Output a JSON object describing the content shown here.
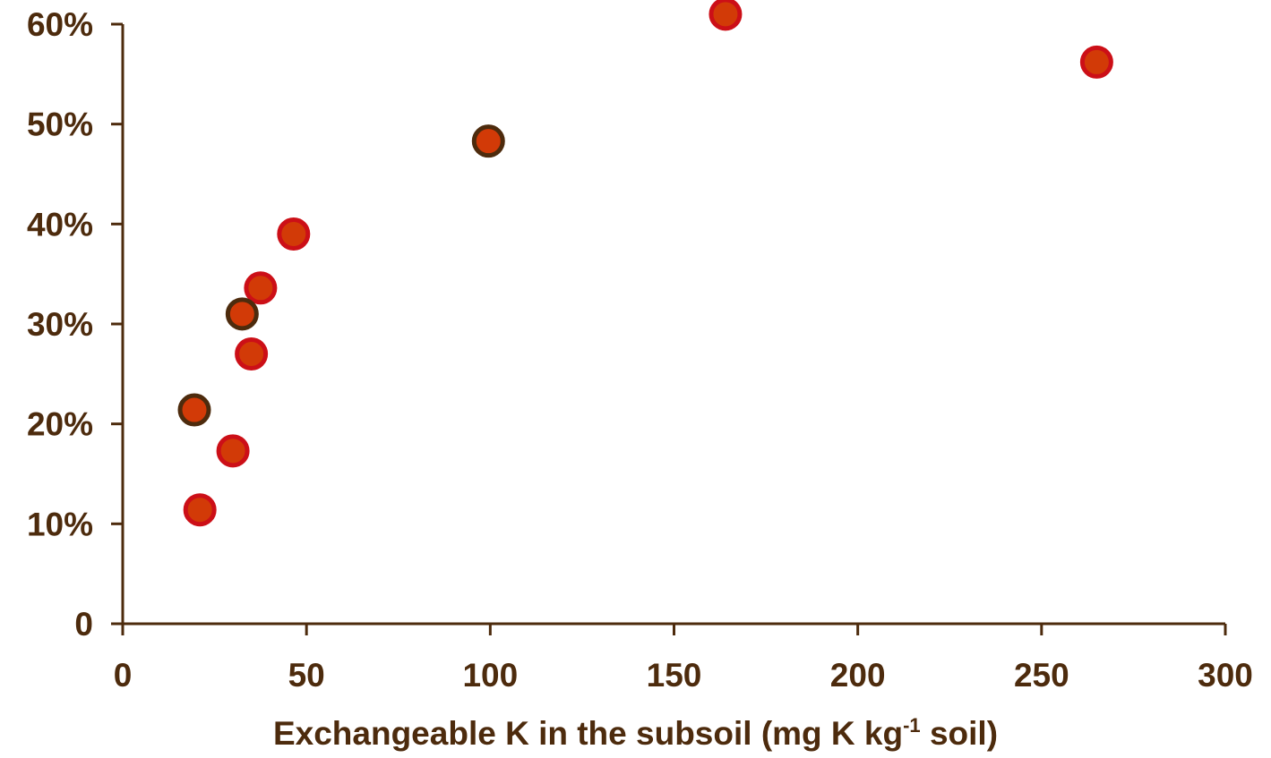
{
  "chart_data": {
    "type": "scatter",
    "title": "",
    "xlabel": {
      "prefix": "Exchangeable K in the subsoil (mg K kg",
      "superscript": "-1",
      "suffix": " soil)"
    },
    "ylabel": "",
    "xlim": [
      0,
      300
    ],
    "ylim": [
      0,
      0.6
    ],
    "x_ticks": [
      0,
      50,
      100,
      150,
      200,
      250,
      300
    ],
    "x_tick_labels": [
      "0",
      "50",
      "100",
      "150",
      "200",
      "250",
      "300"
    ],
    "y_ticks": [
      0,
      0.1,
      0.2,
      0.3,
      0.4,
      0.5,
      0.6
    ],
    "y_tick_labels": [
      "0",
      "10%",
      "20%",
      "30%",
      "40%",
      "50%",
      "60%"
    ],
    "grid": false,
    "legend": "none",
    "series": [
      {
        "values": [
          {
            "x": 21,
            "y": 0.114
          },
          {
            "x": 30,
            "y": 0.173
          },
          {
            "x": 35,
            "y": 0.27
          },
          {
            "x": 37.5,
            "y": 0.336
          },
          {
            "x": 46.5,
            "y": 0.39
          },
          {
            "x": 164,
            "y": 0.61
          },
          {
            "x": 265,
            "y": 0.562
          }
        ],
        "fill": "#d23a07",
        "outline": "#cc0f17"
      },
      {
        "values": [
          {
            "x": 19.5,
            "y": 0.214
          },
          {
            "x": 32.5,
            "y": 0.31
          },
          {
            "x": 99.5,
            "y": 0.483
          }
        ],
        "fill": "#d23a07",
        "outline": "#4d2b0d"
      }
    ],
    "colors": {
      "axis": "#4d2b0d",
      "text": "#4d2b0d"
    }
  }
}
